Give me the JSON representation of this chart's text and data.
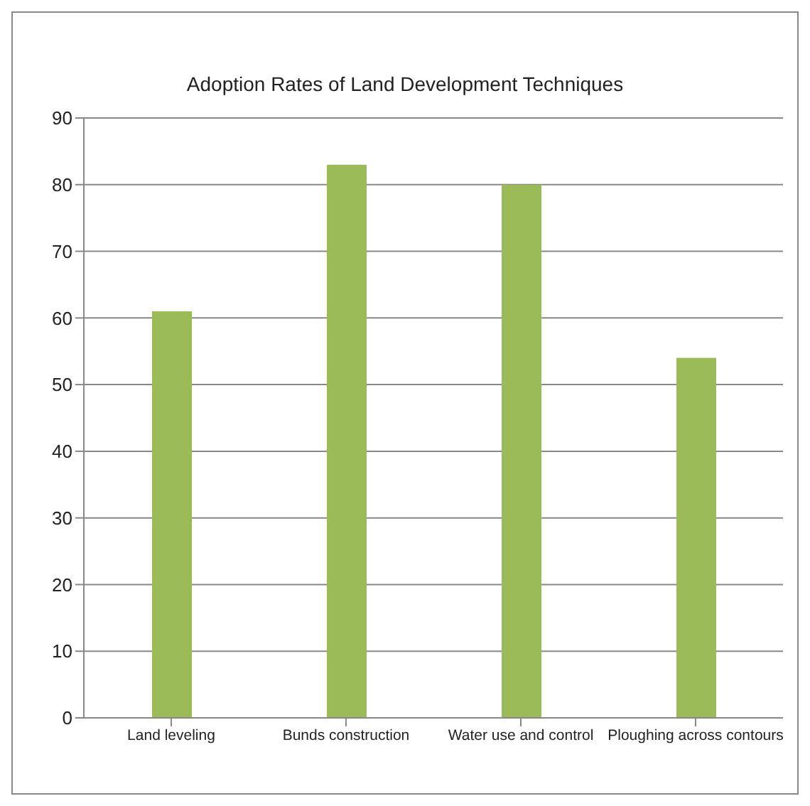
{
  "chart_data": {
    "type": "bar",
    "title": "Adoption Rates of Land  Development  Techniques",
    "categories": [
      "Land leveling",
      "Bunds construction",
      "Water use and control",
      "Ploughing across contours"
    ],
    "values": [
      61,
      83,
      80,
      54
    ],
    "color": "#9bbb59",
    "ylim": [
      0,
      90
    ],
    "yticks": [
      0,
      10,
      20,
      30,
      40,
      50,
      60,
      70,
      80,
      90
    ],
    "grid": "y"
  }
}
